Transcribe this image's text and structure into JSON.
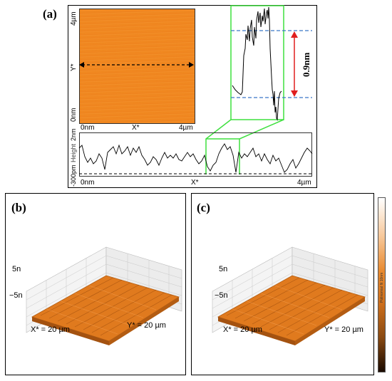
{
  "panel_a": {
    "label": "(a)",
    "afm_image": {
      "y_top": "4µm",
      "y_axis": "Y*",
      "y_bottom": "0nm",
      "x_left": "0nm",
      "x_axis": "X*",
      "x_right": "4µm",
      "color": "#f0861f"
    },
    "zoom": {
      "step_label": "0.9nm",
      "dashed_color": "#3a78c8",
      "arrow_color": "#e01e1e",
      "box_color": "#3fe03f"
    },
    "profile": {
      "y_top": "2nm",
      "y_axis": "Height",
      "y_bottom": "-300pm",
      "x_left": "0nm",
      "x_axis": "X*",
      "x_right": "4µm"
    }
  },
  "panel_b": {
    "label": "(b)",
    "z_top": "5n",
    "z_bottom": "−5n",
    "x_size": "X* = 20 µm",
    "y_size": "Y* = 20 µm"
  },
  "panel_c": {
    "label": "(c)",
    "z_top": "5n",
    "z_bottom": "−5n",
    "x_size": "X* = 20 µm",
    "y_size": "Y* = 20 µm"
  },
  "colorbar": {
    "label": "Polinomial fit 10nm",
    "top_color": "#ffffff",
    "mid_color": "#e07a20",
    "bottom_color": "#1a0a00"
  },
  "surface_color": "#e07a1e"
}
